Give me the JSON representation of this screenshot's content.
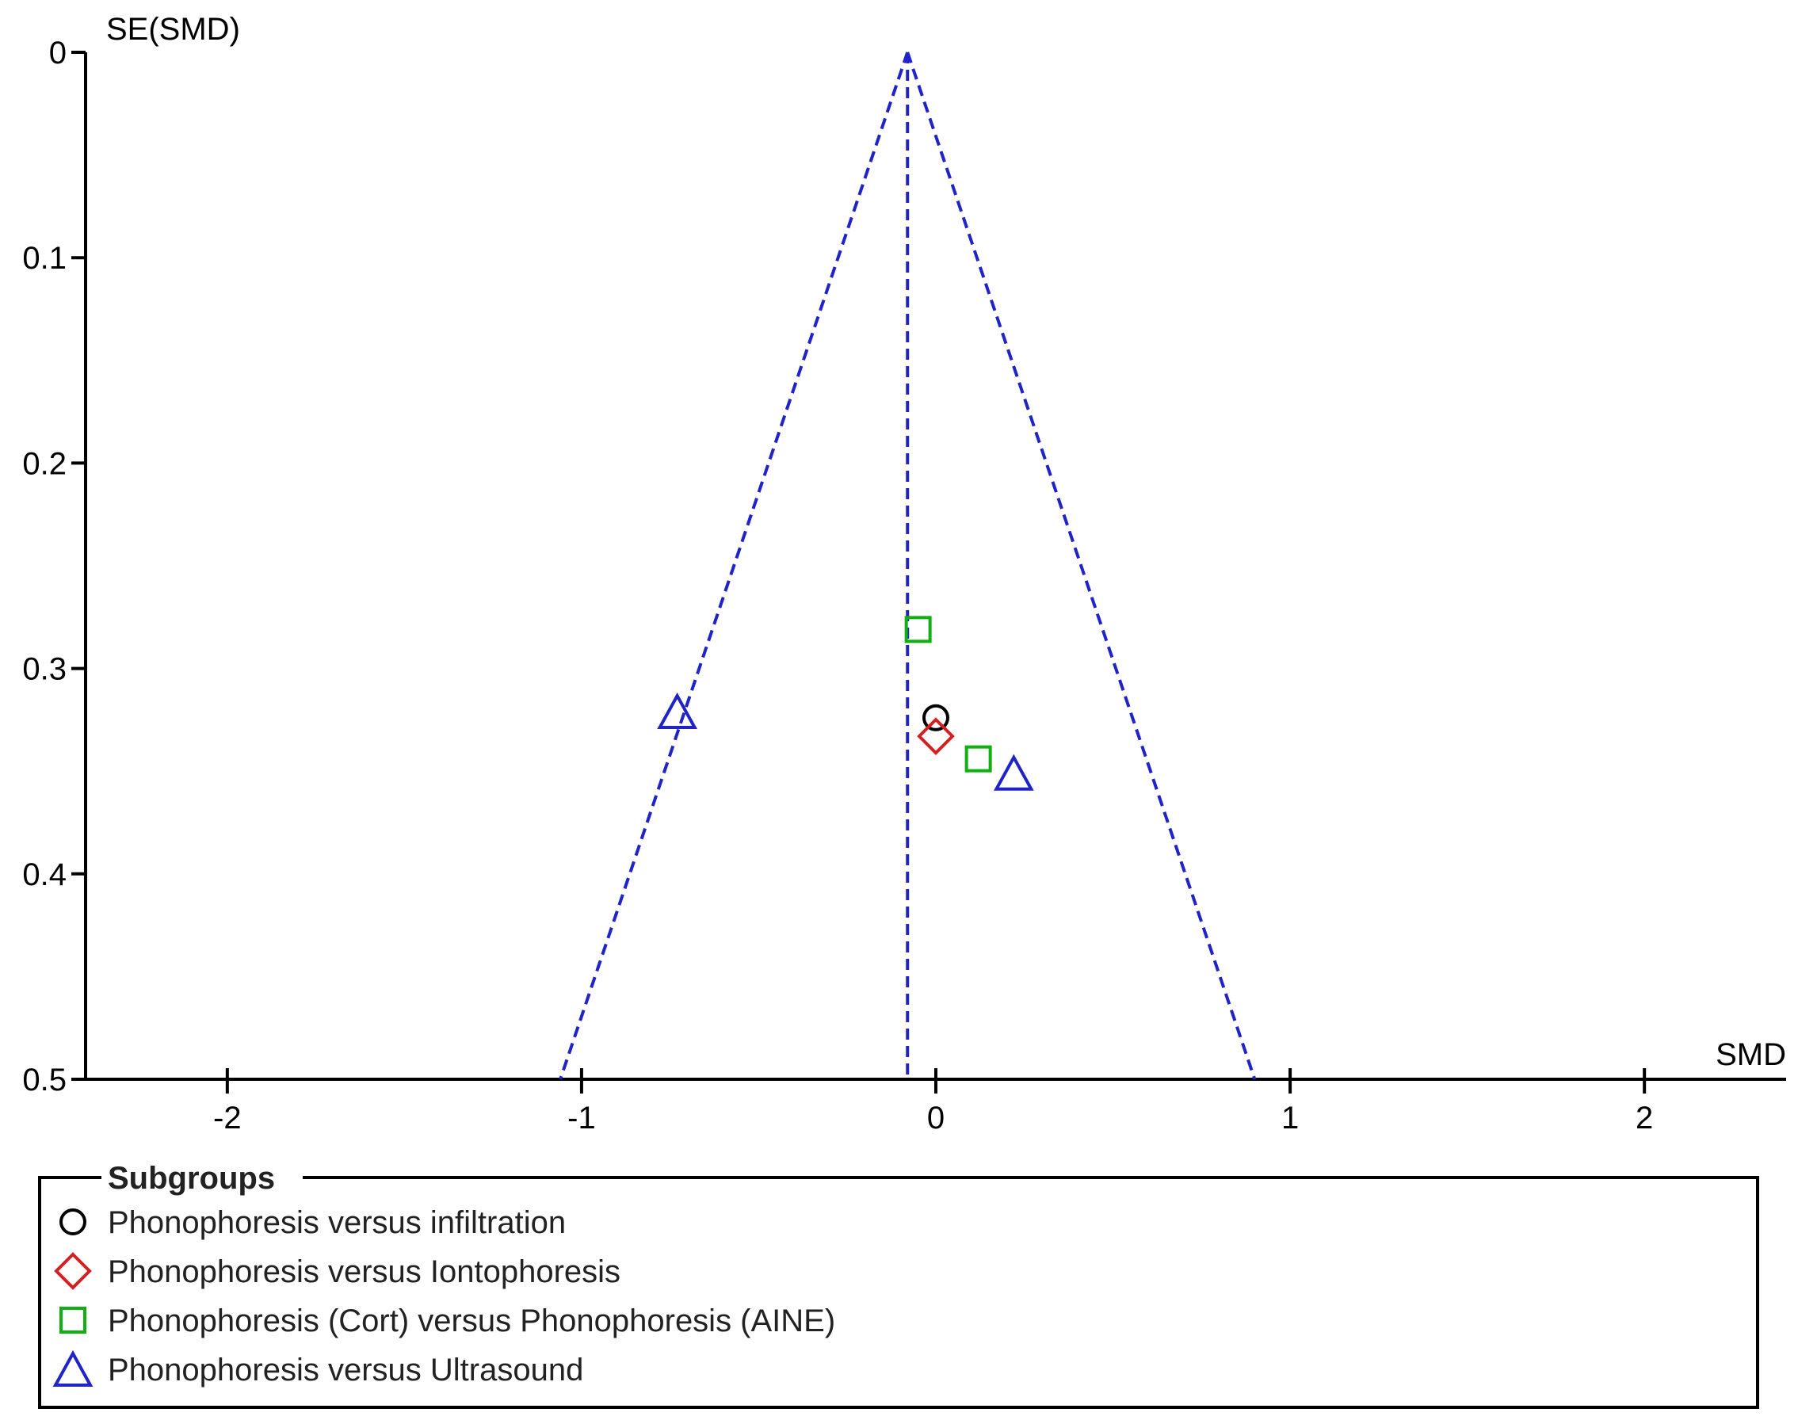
{
  "chart_data": {
    "type": "scatter",
    "title": "",
    "xlabel": "SMD",
    "ylabel": "SE(SMD)",
    "xlim": [
      -2.4,
      2.4
    ],
    "ylim": [
      0,
      0.5
    ],
    "y_inverted": true,
    "x_ticks": [
      -2,
      -1,
      0,
      1,
      2
    ],
    "x_tick_labels": [
      "-2",
      "-1",
      "0",
      "1",
      "2"
    ],
    "y_ticks": [
      0,
      0.1,
      0.2,
      0.3,
      0.4,
      0.5
    ],
    "y_tick_labels": [
      "0",
      "0.1",
      "0.2",
      "0.3",
      "0.4",
      "0.5"
    ],
    "grid": false,
    "funnel": {
      "summary_effect": -0.08,
      "left_bottom": [
        -1.06,
        0.5
      ],
      "right_bottom": [
        0.9,
        0.5
      ],
      "apex": [
        -0.08,
        0
      ],
      "color": "#1f23c8",
      "style": "dashed"
    },
    "legend": {
      "title": "Subgroups",
      "placement": "bottom"
    },
    "series": [
      {
        "name": "Phonophoresis versus infiltration",
        "marker": "circle",
        "color": "#000000",
        "points": [
          {
            "x": 0.0,
            "y": 0.324
          }
        ]
      },
      {
        "name": "Phonophoresis versus Iontophoresis",
        "marker": "diamond",
        "color": "#d42020",
        "points": [
          {
            "x": 0.0,
            "y": 0.333
          }
        ]
      },
      {
        "name": "Phonophoresis (Cort) versus Phonophoresis (AINE)",
        "marker": "square",
        "color": "#10b010",
        "points": [
          {
            "x": -0.05,
            "y": 0.281
          },
          {
            "x": 0.12,
            "y": 0.344
          }
        ]
      },
      {
        "name": "Phonophoresis versus Ultrasound",
        "marker": "triangle",
        "color": "#1f23c8",
        "points": [
          {
            "x": -0.73,
            "y": 0.321
          },
          {
            "x": 0.22,
            "y": 0.351
          }
        ]
      }
    ]
  }
}
